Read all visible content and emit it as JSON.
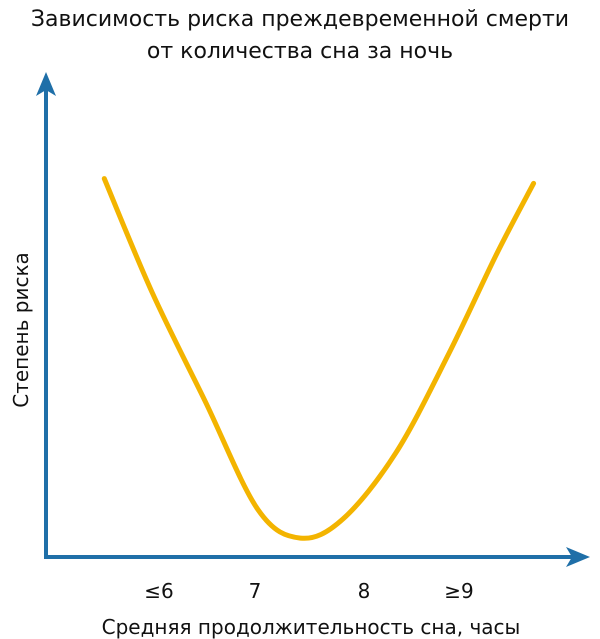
{
  "chart_data": {
    "type": "line",
    "title": [
      "Зависимость риска преждевременной смерти",
      "от количества сна за ночь"
    ],
    "xlabel": "Средняя продолжительность сна, часы",
    "ylabel": "Степень риска",
    "categories": [
      "≤6",
      "7",
      "8",
      "≥9"
    ],
    "grid": false,
    "legend": "none",
    "colors": {
      "axis": "#1f6fa8",
      "curve": "#f3b400",
      "text": "#111111"
    },
    "series": [
      {
        "x": [
          5.55,
          6.0,
          6.5,
          7.0,
          7.4,
          7.8,
          8.3,
          8.8,
          9.25,
          9.6
        ],
        "y": [
          0.8,
          0.56,
          0.33,
          0.1,
          0.04,
          0.08,
          0.22,
          0.43,
          0.64,
          0.79
        ]
      }
    ],
    "xlim": [
      5.0,
      10.0
    ],
    "ylim": [
      0,
      1
    ]
  }
}
